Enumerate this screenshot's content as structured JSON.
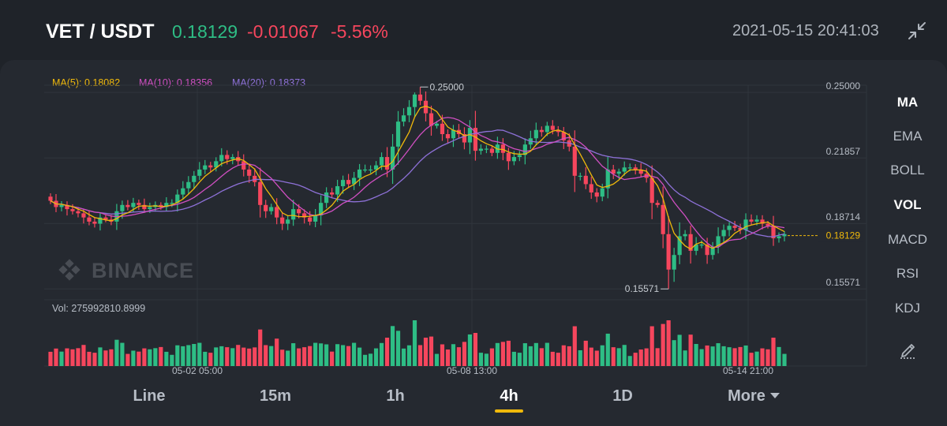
{
  "header": {
    "pair": "VET / USDT",
    "price": "0.18129",
    "change": "-0.01067",
    "change_pct": "-5.56%",
    "datetime": "2021-05-15 20:41:03",
    "expand_icon": "collapse-arrows-icon"
  },
  "indicators": {
    "ma5": "MA(5): 0.18082",
    "ma10": "MA(10): 0.18356",
    "ma20": "MA(20): 0.18373"
  },
  "chart": {
    "price_axis": [
      "0.25000",
      "0.21857",
      "0.18714",
      "0.15571"
    ],
    "high_label": "0.25000",
    "low_label": "0.15571",
    "last_price": "0.18129",
    "time_axis": [
      "05-02 05:00",
      "05-08 13:00",
      "05-14 21:00"
    ],
    "volume_label": "Vol: 275992810.8999",
    "watermark": "BINANCE"
  },
  "side_menu": [
    "MA",
    "EMA",
    "BOLL",
    "VOL",
    "MACD",
    "RSI",
    "KDJ"
  ],
  "side_tool_icon": "draw-pen-icon",
  "timeframes": [
    "Line",
    "15m",
    "1h",
    "4h",
    "1D",
    "More"
  ],
  "colors": {
    "up": "#2ebd85",
    "down": "#f6465d",
    "ma5": "#f0b90b",
    "ma10": "#d04fc2",
    "ma20": "#8e71d8",
    "accent": "#f0b90b"
  },
  "chart_data": {
    "type": "candlestick",
    "interval": "4h",
    "ylim": [
      0.1505,
      0.2565
    ],
    "x_ticks": [
      "05-02 05:00",
      "05-08 13:00",
      "05-14 21:00"
    ],
    "y_ticks": [
      0.25,
      0.21857,
      0.18714,
      0.15571
    ],
    "close": [
      0.198,
      0.195,
      0.196,
      0.194,
      0.193,
      0.192,
      0.19,
      0.188,
      0.187,
      0.19,
      0.189,
      0.188,
      0.193,
      0.196,
      0.195,
      0.197,
      0.196,
      0.194,
      0.195,
      0.196,
      0.195,
      0.197,
      0.197,
      0.201,
      0.204,
      0.207,
      0.21,
      0.213,
      0.215,
      0.214,
      0.217,
      0.22,
      0.218,
      0.219,
      0.217,
      0.213,
      0.21,
      0.207,
      0.196,
      0.193,
      0.195,
      0.19,
      0.187,
      0.189,
      0.194,
      0.192,
      0.19,
      0.188,
      0.191,
      0.197,
      0.202,
      0.201,
      0.205,
      0.208,
      0.206,
      0.209,
      0.213,
      0.213,
      0.213,
      0.215,
      0.219,
      0.213,
      0.224,
      0.236,
      0.239,
      0.243,
      0.249,
      0.246,
      0.24,
      0.234,
      0.235,
      0.23,
      0.228,
      0.232,
      0.23,
      0.226,
      0.233,
      0.222,
      0.223,
      0.223,
      0.221,
      0.225,
      0.221,
      0.217,
      0.219,
      0.22,
      0.225,
      0.228,
      0.232,
      0.231,
      0.234,
      0.232,
      0.231,
      0.227,
      0.224,
      0.21,
      0.21,
      0.206,
      0.202,
      0.2,
      0.204,
      0.213,
      0.211,
      0.212,
      0.214,
      0.214,
      0.213,
      0.211,
      0.209,
      0.197,
      0.196,
      0.182,
      0.165,
      0.172,
      0.181,
      0.182,
      0.174,
      0.177,
      0.177,
      0.172,
      0.176,
      0.181,
      0.184,
      0.186,
      0.185,
      0.184,
      0.189,
      0.188,
      0.189,
      0.187,
      0.186,
      0.18,
      0.181,
      0.182
    ],
    "series": [
      {
        "name": "MA(5)",
        "last": 0.18082
      },
      {
        "name": "MA(10)",
        "last": 0.18356
      },
      {
        "name": "MA(20)",
        "last": 0.18373
      }
    ],
    "low_marker": 0.15571,
    "high_marker": 0.25,
    "last_price": 0.18129
  }
}
